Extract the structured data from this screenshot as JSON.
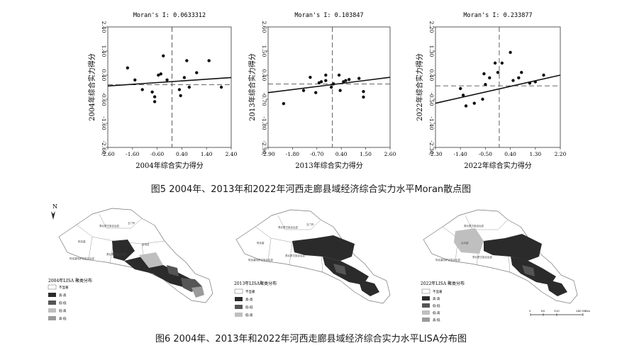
{
  "chart_data": [
    {
      "type": "scatter",
      "title": "Moran's I: 0.0633312",
      "xlabel": "2004年综合实力得分",
      "ylabel": "2004年综合实力得分",
      "xlim": [
        -2.6,
        2.4
      ],
      "ylim": [
        -2.6,
        2.4
      ],
      "x_ticks": [
        "-2.60",
        "-1.60",
        "-0.60",
        "0.40",
        "1.40",
        "2.40"
      ],
      "y_ticks": [
        "-2.60",
        "-1.60",
        "-0.60",
        "0.40",
        "1.40",
        "2.40"
      ],
      "points": [
        [
          -1.8,
          0.7
        ],
        [
          -1.5,
          0.2
        ],
        [
          -1.2,
          -0.2
        ],
        [
          -0.8,
          -0.3
        ],
        [
          -0.7,
          -0.5
        ],
        [
          -0.7,
          -0.7
        ],
        [
          -0.55,
          0.4
        ],
        [
          -0.45,
          0.45
        ],
        [
          -0.35,
          1.2
        ],
        [
          -0.2,
          0.2
        ],
        [
          0.3,
          -0.2
        ],
        [
          0.35,
          -0.45
        ],
        [
          0.5,
          0.3
        ],
        [
          0.6,
          1.0
        ],
        [
          0.7,
          -0.1
        ],
        [
          1.0,
          0.5
        ],
        [
          1.5,
          1.0
        ],
        [
          2.0,
          -0.1
        ]
      ],
      "fit_line": {
        "x": [
          -2.6,
          2.4
        ],
        "y": [
          -0.05,
          0.3
        ]
      },
      "crosshair": {
        "x": 0.0,
        "y": 0.0
      }
    },
    {
      "type": "scatter",
      "title": "Moran's I: 0.103847",
      "xlabel": "2013年综合实力得分",
      "ylabel": "2013年综合实力得分",
      "xlim": [
        -2.9,
        2.6
      ],
      "ylim": [
        -2.9,
        2.6
      ],
      "x_ticks": [
        "-2.90",
        "-1.80",
        "-0.70",
        "0.40",
        "1.50",
        "2.60"
      ],
      "y_ticks": [
        "-2.90",
        "-1.80",
        "-0.70",
        "0.40",
        "1.50",
        "2.60"
      ],
      "points": [
        [
          -2.2,
          -0.9
        ],
        [
          -1.3,
          -0.3
        ],
        [
          -1.0,
          0.3
        ],
        [
          -0.75,
          -0.4
        ],
        [
          -0.6,
          0.05
        ],
        [
          -0.5,
          0.1
        ],
        [
          -0.3,
          0.4
        ],
        [
          -0.3,
          0.15
        ],
        [
          -0.05,
          -0.15
        ],
        [
          0.05,
          0.0
        ],
        [
          0.3,
          0.4
        ],
        [
          0.35,
          -0.3
        ],
        [
          0.5,
          0.1
        ],
        [
          0.6,
          0.15
        ],
        [
          0.75,
          0.2
        ],
        [
          1.2,
          0.25
        ],
        [
          1.4,
          -0.35
        ],
        [
          1.4,
          -0.6
        ]
      ],
      "fit_line": {
        "x": [
          -2.9,
          2.6
        ],
        "y": [
          -0.4,
          0.3
        ]
      },
      "crosshair": {
        "x": 0.0,
        "y": 0.0
      }
    },
    {
      "type": "scatter",
      "title": "Moran's I: 0.233877",
      "xlabel": "2022年综合实力得分",
      "ylabel": "2022年综合实力得分",
      "xlim": [
        -2.3,
        2.2
      ],
      "ylim": [
        -2.3,
        2.2
      ],
      "x_ticks": [
        "-2.30",
        "-1.40",
        "-0.50",
        "0.40",
        "1.30",
        "2.20"
      ],
      "y_ticks": [
        "-2.30",
        "-1.40",
        "-0.50",
        "0.40",
        "1.30",
        "2.20"
      ],
      "points": [
        [
          -1.4,
          -0.1
        ],
        [
          -1.3,
          -0.35
        ],
        [
          -1.2,
          -0.75
        ],
        [
          -0.9,
          -0.65
        ],
        [
          -0.6,
          -0.5
        ],
        [
          -0.55,
          0.45
        ],
        [
          -0.5,
          0.05
        ],
        [
          -0.35,
          0.3
        ],
        [
          -0.15,
          0.85
        ],
        [
          -0.05,
          0.5
        ],
        [
          0.1,
          0.85
        ],
        [
          0.4,
          1.25
        ],
        [
          0.5,
          0.2
        ],
        [
          0.7,
          0.3
        ],
        [
          0.8,
          0.5
        ],
        [
          1.1,
          0.1
        ],
        [
          1.3,
          0.15
        ],
        [
          1.6,
          0.4
        ]
      ],
      "fit_line": {
        "x": [
          -2.3,
          2.2
        ],
        "y": [
          -0.65,
          0.4
        ]
      },
      "crosshair": {
        "x": 0.0,
        "y": 0.0
      }
    }
  ],
  "captions": {
    "fig5": "图5  2004年、2013年和2022年河西走廊县域经济综合实力水平Moran散点图",
    "fig6": "图6  2004年、2013年和2022年河西走廊县域经济综合实力水平LISA分布图"
  },
  "maps": [
    {
      "legend_title": "2004年LISA 聚类分布",
      "legend_items": [
        {
          "label": "不显著",
          "color": "#ffffff"
        },
        {
          "label": "高-高",
          "color": "#2b2b2b"
        },
        {
          "label": "低-低",
          "color": "#555555"
        },
        {
          "label": "低-高",
          "color": "#bfbfbf"
        },
        {
          "label": "高-低",
          "color": "#9a9a9a"
        }
      ],
      "north_label": "N"
    },
    {
      "legend_title": "2013年LISA聚类分布",
      "legend_items": [
        {
          "label": "不显著",
          "color": "#ffffff"
        },
        {
          "label": "高-高",
          "color": "#2b2b2b"
        },
        {
          "label": "低-低",
          "color": "#555555"
        },
        {
          "label": "低-高",
          "color": "#bfbfbf"
        }
      ]
    },
    {
      "legend_title": "2022年LISA 聚类分布",
      "legend_items": [
        {
          "label": "不显著",
          "color": "#ffffff"
        },
        {
          "label": "高-高",
          "color": "#2b2b2b"
        },
        {
          "label": "低-低",
          "color": "#555555"
        },
        {
          "label": "低-高",
          "color": "#bfbfbf"
        },
        {
          "label": "高-低",
          "color": "#9a9a9a"
        }
      ],
      "scale_ticks": [
        "0",
        "60",
        "120",
        "240 Miles"
      ]
    }
  ]
}
